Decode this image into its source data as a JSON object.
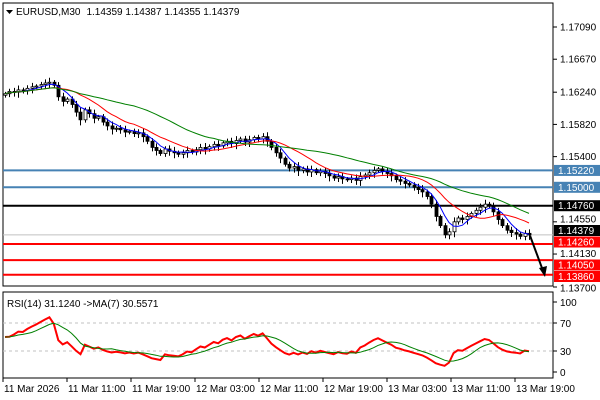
{
  "header": {
    "symbol": "EURUSD,M30",
    "ohlc": "1.14359 1.14387 1.14355 1.14379",
    "menu_icon": "triangle-down-icon"
  },
  "rsi_label": "RSI(14) 31.1240  ->MA(7) 30.5571",
  "chart_data": {
    "type": "candlestick",
    "symbol": "EURUSD",
    "timeframe": "M30",
    "closes": [
      1.1622,
      1.1625,
      1.1624,
      1.1627,
      1.1626,
      1.1629,
      1.1631,
      1.1632,
      1.1634,
      1.1636,
      1.1637,
      1.1633,
      1.1618,
      1.1612,
      1.1615,
      1.1608,
      1.1598,
      1.1588,
      1.1601,
      1.1596,
      1.159,
      1.1592,
      1.1585,
      1.158,
      1.1576,
      1.1577,
      1.1575,
      1.1572,
      1.1573,
      1.157,
      1.1571,
      1.1566,
      1.156,
      1.1552,
      1.1548,
      1.1544,
      1.155,
      1.1547,
      1.1545,
      1.1543,
      1.1545,
      1.1548,
      1.1546,
      1.1549,
      1.1552,
      1.155,
      1.1553,
      1.1556,
      1.1554,
      1.1558,
      1.156,
      1.1557,
      1.1561,
      1.1563,
      1.1559,
      1.1562,
      1.1565,
      1.1563,
      1.1566,
      1.156,
      1.1552,
      1.1545,
      1.1538,
      1.153,
      1.1525,
      1.1527,
      1.1522,
      1.1524,
      1.152,
      1.1523,
      1.1519,
      1.1521,
      1.1518,
      1.1515,
      1.1512,
      1.1514,
      1.1511,
      1.151,
      1.1512,
      1.1509,
      1.1514,
      1.1516,
      1.1519,
      1.1522,
      1.1524,
      1.1521,
      1.1518,
      1.1515,
      1.151,
      1.1508,
      1.1505,
      1.1503,
      1.15,
      1.1497,
      1.1494,
      1.1488,
      1.1478,
      1.1462,
      1.145,
      1.1438,
      1.1442,
      1.1455,
      1.146,
      1.1458,
      1.1462,
      1.1466,
      1.147,
      1.1474,
      1.1478,
      1.1476,
      1.1468,
      1.1458,
      1.145,
      1.1444,
      1.1441,
      1.1439,
      1.1436,
      1.144,
      1.14379
    ],
    "last_price": "1.14379",
    "ylim": [
      1.137,
      1.1745
    ],
    "y_ticks": [
      "1.17090",
      "1.16670",
      "1.16240",
      "1.15820",
      "1.15400",
      "1.14550",
      "1.14130",
      "1.13700"
    ],
    "x_ticks": [
      "11 Mar 2026",
      "11 Mar 11:00",
      "11 Mar 19:00",
      "12 Mar 03:00",
      "12 Mar 11:00",
      "12 Mar 19:00",
      "13 Mar 03:00",
      "13 Mar 11:00",
      "13 Mar 19:00"
    ],
    "moving_averages": [
      {
        "period": 5,
        "color": "#0000ff"
      },
      {
        "period": 12,
        "color": "#ff0000"
      },
      {
        "period": 30,
        "color": "#008000"
      }
    ],
    "levels": [
      {
        "price": 1.1522,
        "label": "1.15220",
        "color": "#4682b4"
      },
      {
        "price": 1.15,
        "label": "1.15000",
        "color": "#4682b4"
      },
      {
        "price": 1.1476,
        "label": "1.14760",
        "color": "#000000"
      },
      {
        "price": 1.1426,
        "label": "1.14260",
        "color": "#ff0000"
      },
      {
        "price": 1.1405,
        "label": "1.14050",
        "color": "#ff0000"
      },
      {
        "price": 1.1386,
        "label": "1.13860",
        "color": "#ff0000"
      }
    ],
    "arrow": {
      "from_price": 1.1437,
      "to_price": 1.1383,
      "direction": "down",
      "color": "#000000"
    },
    "rsi": {
      "period": 14,
      "ma_period": 7,
      "value": 31.124,
      "ma_value": 30.5571,
      "ylim": [
        0,
        100
      ],
      "y_ticks": [
        "100",
        "70",
        "30",
        "0"
      ],
      "levels": [
        70,
        30
      ],
      "rsi_color": "#ff0000",
      "ma_color": "#008000"
    }
  }
}
